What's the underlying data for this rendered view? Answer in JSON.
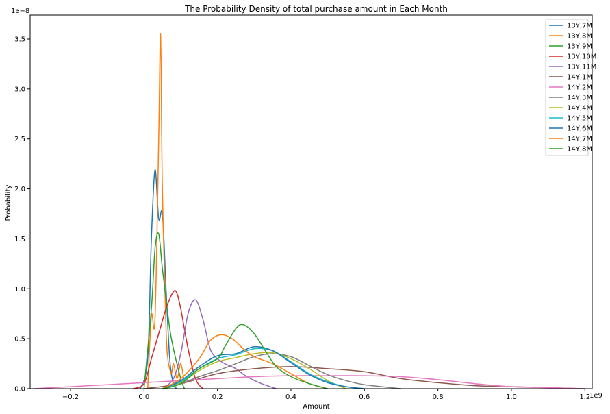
{
  "chart_data": {
    "type": "line",
    "title": "The Probability Density of total purchase amount in Each Month",
    "xlabel": "Amount",
    "ylabel": "Probability",
    "x_scale_label": "1e9",
    "y_scale_label": "1e−8",
    "xlim": [
      -0.31,
      1.22
    ],
    "ylim": [
      0,
      3.74
    ],
    "x_ticks": [
      -0.2,
      0.0,
      0.2,
      0.4,
      0.6,
      0.8,
      1.0,
      1.2
    ],
    "x_tick_labels": [
      "−0.2",
      "0.0",
      "0.2",
      "0.4",
      "0.6",
      "0.8",
      "1.0",
      "1.2"
    ],
    "y_ticks": [
      0.0,
      0.5,
      1.0,
      1.5,
      2.0,
      2.5,
      3.0,
      3.5
    ],
    "y_tick_labels": [
      "0.0",
      "0.5",
      "1.0",
      "1.5",
      "2.0",
      "2.5",
      "3.0",
      "3.5"
    ],
    "grid": false,
    "legend_position": "top-right",
    "series": [
      {
        "name": "13Y,7M",
        "color": "#1f77b4",
        "x": [
          -0.01,
          0.01,
          0.02,
          0.03,
          0.04,
          0.05,
          0.06,
          0.07,
          0.08,
          0.09
        ],
        "y": [
          0.0,
          0.3,
          1.5,
          2.19,
          1.7,
          1.75,
          1.0,
          0.3,
          0.05,
          0.0
        ]
      },
      {
        "name": "13Y,8M",
        "color": "#ff7f0e",
        "x": [
          0.01,
          0.02,
          0.03,
          0.04,
          0.045,
          0.05,
          0.06,
          0.065,
          0.07,
          0.075,
          0.08,
          0.09,
          0.1,
          0.11
        ],
        "y": [
          0.0,
          0.73,
          0.7,
          2.5,
          3.55,
          2.0,
          0.6,
          0.3,
          0.2,
          0.15,
          0.25,
          0.1,
          0.25,
          0.05
        ]
      },
      {
        "name": "13Y,9M",
        "color": "#2ca02c",
        "x": [
          0.0,
          0.02,
          0.03,
          0.04,
          0.05,
          0.06,
          0.07,
          0.08,
          0.1,
          0.11
        ],
        "y": [
          0.0,
          0.8,
          1.4,
          1.55,
          1.2,
          0.9,
          0.6,
          0.4,
          0.1,
          0.0
        ]
      },
      {
        "name": "13Y,10M",
        "color": "#d62728",
        "x": [
          -0.03,
          0.0,
          0.02,
          0.04,
          0.06,
          0.08,
          0.09,
          0.1,
          0.12,
          0.14,
          0.16
        ],
        "y": [
          0.0,
          0.05,
          0.3,
          0.55,
          0.8,
          0.97,
          0.95,
          0.8,
          0.4,
          0.1,
          0.0
        ]
      },
      {
        "name": "13Y,11M",
        "color": "#9467bd",
        "x": [
          0.05,
          0.08,
          0.1,
          0.12,
          0.14,
          0.16,
          0.18,
          0.2,
          0.22,
          0.25,
          0.28,
          0.32,
          0.36
        ],
        "y": [
          0.0,
          0.1,
          0.35,
          0.75,
          0.89,
          0.7,
          0.4,
          0.3,
          0.25,
          0.2,
          0.12,
          0.05,
          0.0
        ]
      },
      {
        "name": "14Y,1M",
        "color": "#8c564b",
        "x": [
          0.0,
          0.1,
          0.2,
          0.3,
          0.4,
          0.5,
          0.6,
          0.7,
          0.8,
          0.9,
          1.0,
          1.1,
          1.2
        ],
        "y": [
          0.0,
          0.05,
          0.15,
          0.2,
          0.22,
          0.2,
          0.17,
          0.1,
          0.06,
          0.03,
          0.02,
          0.01,
          0.0
        ]
      },
      {
        "name": "14Y,2M",
        "color": "#e377c2",
        "x": [
          -0.3,
          -0.2,
          -0.1,
          0.0,
          0.1,
          0.2,
          0.3,
          0.4,
          0.5,
          0.6,
          0.7,
          0.8,
          0.9,
          1.0,
          1.1,
          1.2
        ],
        "y": [
          0.0,
          0.02,
          0.04,
          0.06,
          0.08,
          0.1,
          0.12,
          0.13,
          0.13,
          0.13,
          0.12,
          0.09,
          0.05,
          0.02,
          0.01,
          0.0
        ]
      },
      {
        "name": "14Y,3M",
        "color": "#7f7f7f",
        "x": [
          0.05,
          0.1,
          0.15,
          0.2,
          0.25,
          0.3,
          0.35,
          0.4,
          0.45,
          0.5,
          0.55,
          0.6,
          0.7
        ],
        "y": [
          0.0,
          0.05,
          0.12,
          0.18,
          0.25,
          0.32,
          0.35,
          0.32,
          0.23,
          0.14,
          0.08,
          0.04,
          0.0
        ]
      },
      {
        "name": "14Y,4M",
        "color": "#bcbd22",
        "x": [
          0.05,
          0.1,
          0.15,
          0.2,
          0.25,
          0.3,
          0.35,
          0.4,
          0.45,
          0.5,
          0.55
        ],
        "y": [
          0.0,
          0.06,
          0.18,
          0.27,
          0.31,
          0.35,
          0.36,
          0.3,
          0.2,
          0.08,
          0.0
        ]
      },
      {
        "name": "14Y,5M",
        "color": "#17becf",
        "x": [
          0.05,
          0.1,
          0.15,
          0.2,
          0.25,
          0.3,
          0.35,
          0.4,
          0.45,
          0.5,
          0.55,
          0.6
        ],
        "y": [
          0.0,
          0.07,
          0.2,
          0.3,
          0.34,
          0.4,
          0.38,
          0.27,
          0.15,
          0.07,
          0.02,
          0.0
        ]
      },
      {
        "name": "14Y,6M",
        "color": "#1f77b4",
        "x": [
          0.05,
          0.1,
          0.15,
          0.2,
          0.25,
          0.3,
          0.35,
          0.4,
          0.45,
          0.5,
          0.55,
          0.6
        ],
        "y": [
          0.0,
          0.08,
          0.22,
          0.33,
          0.35,
          0.42,
          0.38,
          0.26,
          0.14,
          0.06,
          0.02,
          0.0
        ]
      },
      {
        "name": "14Y,7M",
        "color": "#ff7f0e",
        "x": [
          0.05,
          0.1,
          0.15,
          0.18,
          0.21,
          0.24,
          0.27,
          0.3,
          0.35,
          0.4,
          0.45,
          0.5
        ],
        "y": [
          0.0,
          0.1,
          0.3,
          0.48,
          0.54,
          0.5,
          0.4,
          0.32,
          0.25,
          0.15,
          0.05,
          0.0
        ]
      },
      {
        "name": "14Y,8M",
        "color": "#2ca02c",
        "x": [
          0.05,
          0.1,
          0.15,
          0.2,
          0.22,
          0.25,
          0.27,
          0.3,
          0.33,
          0.36,
          0.4,
          0.45,
          0.5
        ],
        "y": [
          0.0,
          0.05,
          0.2,
          0.3,
          0.42,
          0.6,
          0.64,
          0.55,
          0.38,
          0.22,
          0.12,
          0.05,
          0.0
        ]
      }
    ]
  }
}
